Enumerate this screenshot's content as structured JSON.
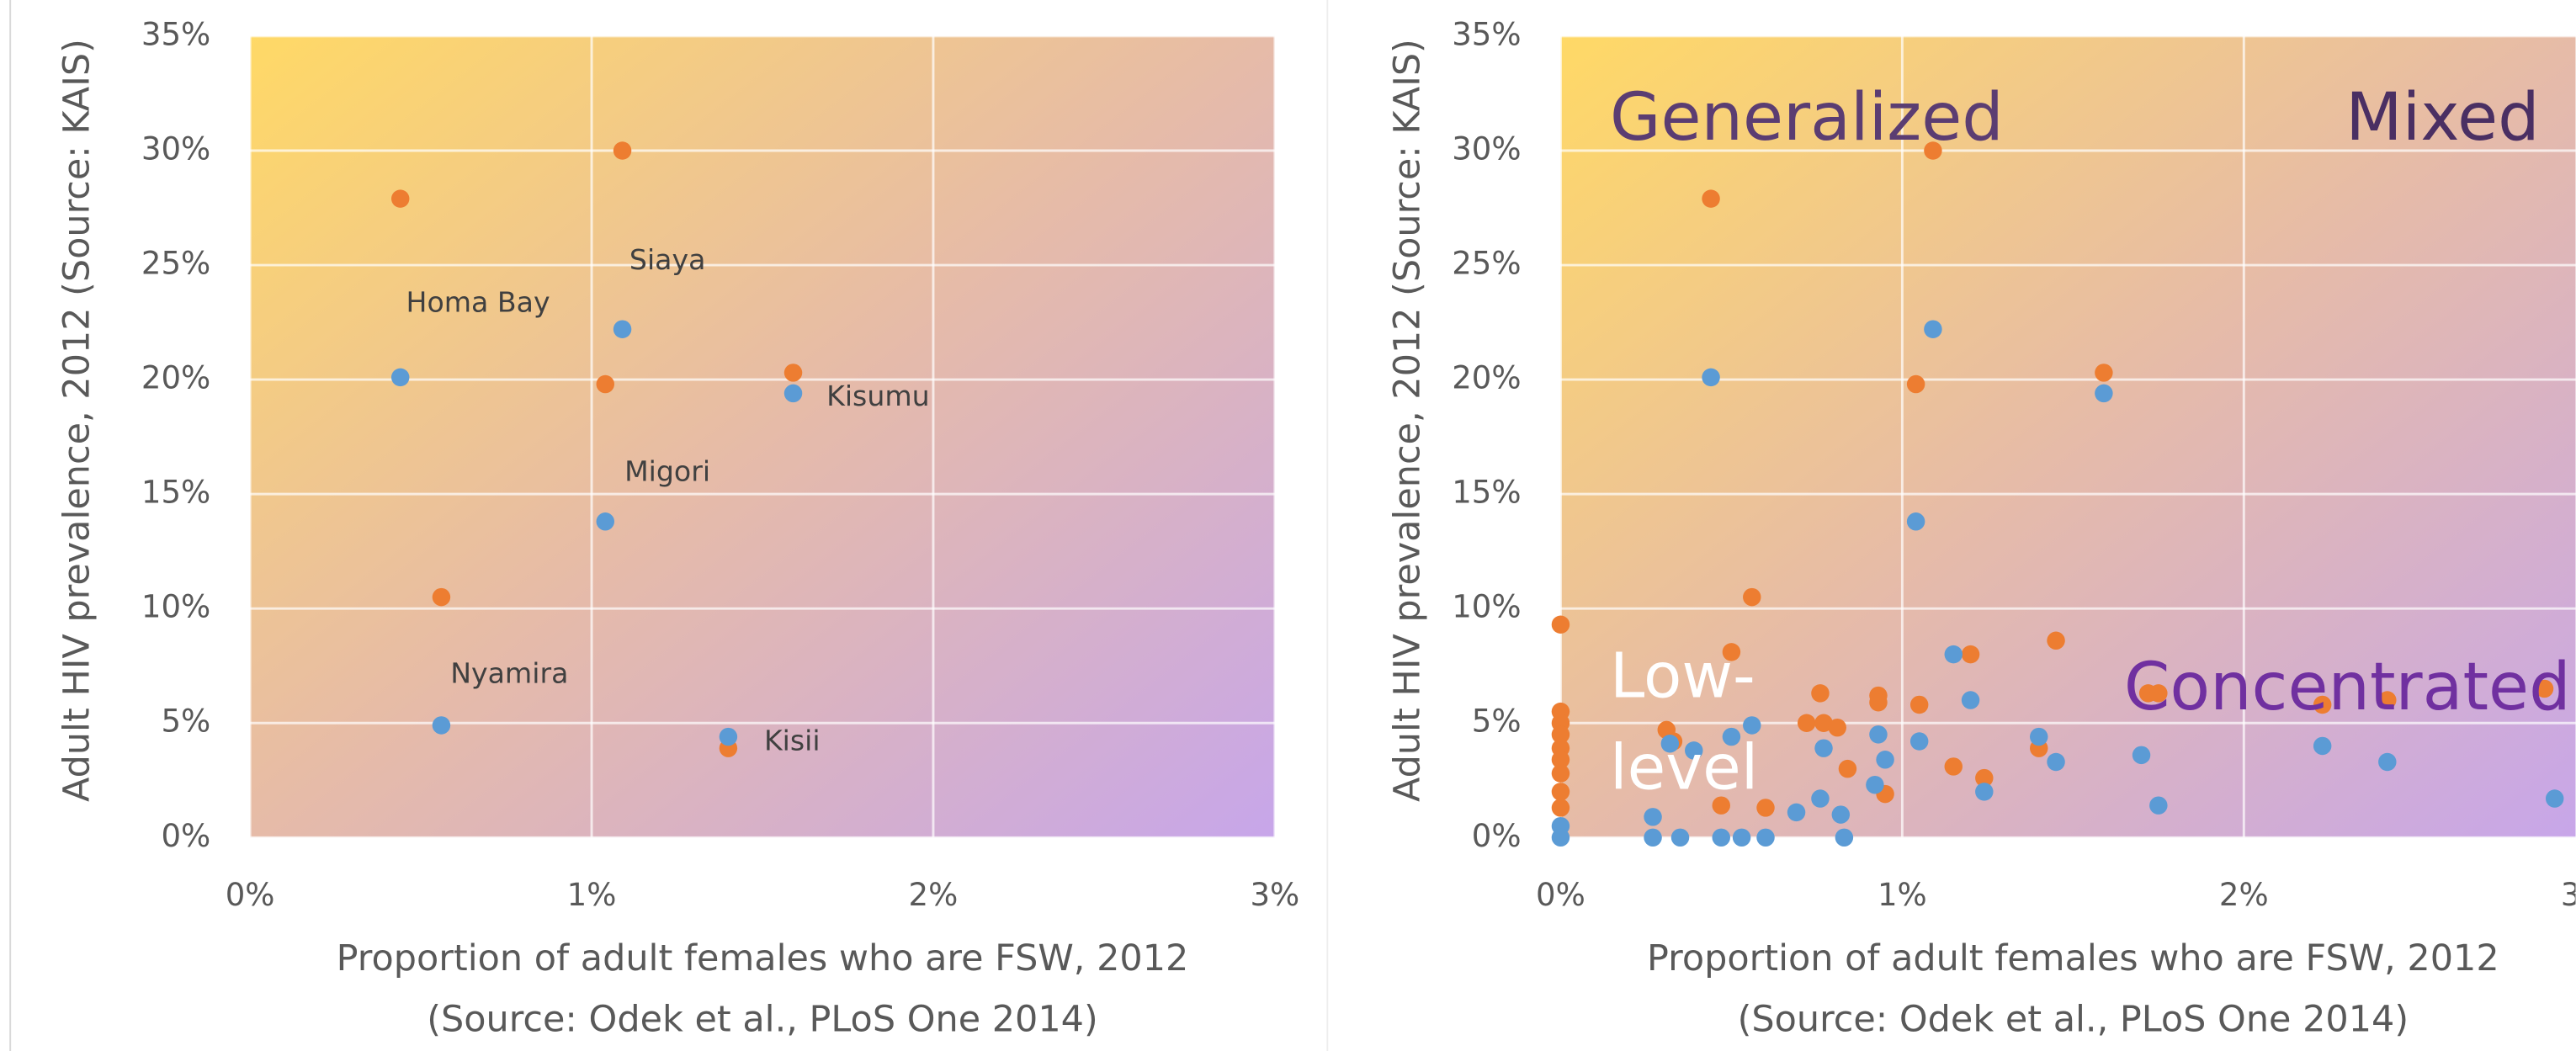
{
  "chart_data": [
    {
      "type": "scatter",
      "ylabel": "Adult HIV prevalence, 2012 (Source: KAIS)",
      "xlabel": [
        "Proportion of adult females who are FSW, 2012",
        "(Source: Odek et al., PLoS One 2014)"
      ],
      "xlim": [
        0,
        3
      ],
      "ylim": [
        0,
        35
      ],
      "grid": true,
      "xticks": [
        {
          "value": 0,
          "label": "0%"
        },
        {
          "value": 1,
          "label": "1%"
        },
        {
          "value": 2,
          "label": "2%"
        },
        {
          "value": 3,
          "label": "3%"
        }
      ],
      "yticks": [
        {
          "value": 0,
          "label": "0%"
        },
        {
          "value": 5,
          "label": "5%"
        },
        {
          "value": 10,
          "label": "10%"
        },
        {
          "value": 15,
          "label": "15%"
        },
        {
          "value": 20,
          "label": "20%"
        },
        {
          "value": 25,
          "label": "25%"
        },
        {
          "value": 30,
          "label": "30%"
        },
        {
          "value": 35,
          "label": "35%"
        }
      ],
      "series": [
        {
          "color": "#ed7d31",
          "x": [
            0.44,
            1.09,
            1.04,
            1.59,
            0.56,
            1.4
          ],
          "values": [
            27.9,
            30.0,
            19.8,
            20.3,
            10.5,
            3.9
          ]
        },
        {
          "color": "#5b9bd5",
          "x": [
            0.44,
            1.09,
            1.59,
            1.04,
            0.56,
            1.4
          ],
          "values": [
            20.1,
            22.2,
            19.4,
            13.8,
            4.9,
            4.4
          ]
        }
      ],
      "annotations": [
        {
          "text": "Siaya",
          "color": "#404040"
        },
        {
          "text": "Homa Bay",
          "color": "#404040"
        },
        {
          "text": "Kisumu",
          "color": "#404040"
        },
        {
          "text": "Migori",
          "color": "#404040"
        },
        {
          "text": "Nyamira",
          "color": "#404040"
        },
        {
          "text": "Kisii",
          "color": "#404040"
        }
      ]
    },
    {
      "type": "scatter",
      "ylabel": "Adult HIV prevalence, 2012 (Source: KAIS)",
      "xlabel": [
        "Proportion of adult females who are FSW, 2012",
        "(Source: Odek et al., PLoS One 2014)"
      ],
      "xlim": [
        0,
        3
      ],
      "ylim": [
        0,
        35
      ],
      "grid": true,
      "xticks": [
        {
          "value": 0,
          "label": "0%"
        },
        {
          "value": 1,
          "label": "1%"
        },
        {
          "value": 2,
          "label": "2%"
        },
        {
          "value": 3,
          "label": "3%"
        }
      ],
      "yticks": [
        {
          "value": 0,
          "label": "0%"
        },
        {
          "value": 5,
          "label": "5%"
        },
        {
          "value": 10,
          "label": "10%"
        },
        {
          "value": 15,
          "label": "15%"
        },
        {
          "value": 20,
          "label": "20%"
        },
        {
          "value": 25,
          "label": "25%"
        },
        {
          "value": 30,
          "label": "30%"
        },
        {
          "value": 35,
          "label": "35%"
        }
      ],
      "series": [
        {
          "color": "#ed7d31",
          "x": [
            0,
            0,
            0,
            0,
            0,
            0,
            0,
            0,
            0,
            0.44,
            1.09,
            1.04,
            1.59,
            0.56,
            0.5,
            0.31,
            0.33,
            0.47,
            0.6,
            0.72,
            0.76,
            0.77,
            0.81,
            0.84,
            0.93,
            0.93,
            0.95,
            1.05,
            1.15,
            1.2,
            1.24,
            1.4,
            1.45,
            1.72,
            1.75,
            2.23,
            2.42,
            2.88
          ],
          "values": [
            9.3,
            5.5,
            5.0,
            4.5,
            3.9,
            3.4,
            2.8,
            2.0,
            1.3,
            27.9,
            30.0,
            19.8,
            20.3,
            10.5,
            8.1,
            4.7,
            4.2,
            1.4,
            1.3,
            5.0,
            6.3,
            5.0,
            4.8,
            3.0,
            6.2,
            5.9,
            1.9,
            5.8,
            3.1,
            8.0,
            2.6,
            3.9,
            8.6,
            6.3,
            6.3,
            5.8,
            6.0,
            6.5
          ]
        },
        {
          "color": "#5b9bd5",
          "x": [
            0,
            0,
            0.44,
            1.09,
            1.59,
            1.04,
            0.27,
            0.32,
            0.39,
            0.27,
            0.35,
            0.47,
            0.53,
            0.6,
            0.5,
            0.56,
            0.69,
            0.76,
            0.77,
            0.82,
            0.83,
            0.92,
            0.93,
            0.95,
            1.05,
            1.15,
            1.2,
            1.24,
            1.4,
            1.45,
            1.7,
            1.75,
            2.23,
            2.42,
            2.91
          ],
          "values": [
            0.5,
            0.0,
            20.1,
            22.2,
            19.4,
            13.8,
            0.9,
            4.1,
            3.8,
            0.0,
            0.0,
            0.0,
            0.0,
            0.0,
            4.4,
            4.9,
            1.1,
            1.7,
            3.9,
            1.0,
            0.0,
            2.3,
            4.5,
            3.4,
            4.2,
            8.0,
            6.0,
            2.0,
            4.4,
            3.3,
            3.6,
            1.4,
            4.0,
            3.3,
            1.7
          ]
        }
      ],
      "annotations": [
        {
          "text": "Generalized",
          "color": "#5b3d72"
        },
        {
          "text": "Mixed",
          "color": "#4a2f63"
        },
        {
          "text": "Concentrated",
          "color": "#7030a0"
        },
        {
          "text": "Low-",
          "color": "#ffffff"
        },
        {
          "text": "level",
          "color": "#ffffff"
        }
      ]
    }
  ]
}
